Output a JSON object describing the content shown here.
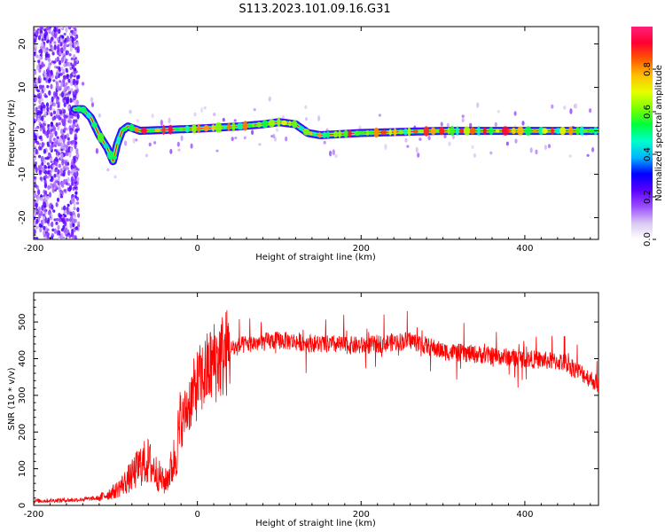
{
  "title": "S113.2023.101.09.16.G31",
  "chart_data": [
    {
      "type": "heatmap",
      "xlabel": "Height of straight line (km)",
      "ylabel": "Frequency (Hz)",
      "xlim": [
        -200,
        490
      ],
      "ylim": [
        -25,
        24
      ],
      "xticks": [
        -200,
        0,
        200,
        400
      ],
      "yticks": [
        20,
        10,
        0,
        -10,
        -20
      ],
      "ytick_labels": [
        "20",
        "10",
        "0",
        "-10",
        "-20"
      ],
      "colorbar": {
        "label": "Normalized spectral amplitude",
        "range": [
          0,
          1
        ],
        "ticks": [
          0.0,
          0.2,
          0.4,
          0.6,
          0.8
        ],
        "tick_labels": [
          "0.0",
          "0.2",
          "0.4",
          "0.6",
          "0.8"
        ],
        "colormap": [
          "#ffffff",
          "#d9c8f2",
          "#9b4dff",
          "#5a00ff",
          "#0000ff",
          "#00b4ff",
          "#00ffcc",
          "#00ff3c",
          "#7cff00",
          "#e6ff00",
          "#ffc000",
          "#ff5a00",
          "#ff0030",
          "#ff1f7a"
        ]
      },
      "ridge": {
        "x": [
          -150,
          -140,
          -130,
          -120,
          -110,
          -103,
          -98,
          -92,
          -85,
          -70,
          0,
          50,
          80,
          100,
          120,
          135,
          150,
          200,
          300,
          400,
          490
        ],
        "y": [
          5,
          5,
          3,
          -1,
          -4,
          -7,
          -3,
          0,
          1,
          0,
          0.5,
          1,
          1.5,
          2,
          1.5,
          -0.5,
          -1,
          -0.5,
          0,
          0,
          0
        ]
      }
    },
    {
      "type": "line",
      "xlabel": "Height of straight line (km)",
      "ylabel": "SNR (10 * v/v)",
      "xlim": [
        -200,
        490
      ],
      "ylim": [
        0,
        580
      ],
      "xticks": [
        -200,
        0,
        200,
        400
      ],
      "yticks": [
        0,
        100,
        200,
        300,
        400,
        500
      ],
      "color": "#ff0000",
      "envelope": {
        "x": [
          -200,
          -150,
          -120,
          -100,
          -80,
          -70,
          -60,
          -40,
          -30,
          -20,
          -10,
          0,
          20,
          40,
          60,
          80,
          100,
          150,
          200,
          260,
          300,
          350,
          400,
          450,
          490
        ],
        "y": [
          12,
          15,
          20,
          40,
          80,
          110,
          120,
          60,
          110,
          220,
          280,
          330,
          390,
          425,
          440,
          445,
          450,
          440,
          435,
          450,
          420,
          410,
          400,
          390,
          330
        ]
      }
    }
  ]
}
